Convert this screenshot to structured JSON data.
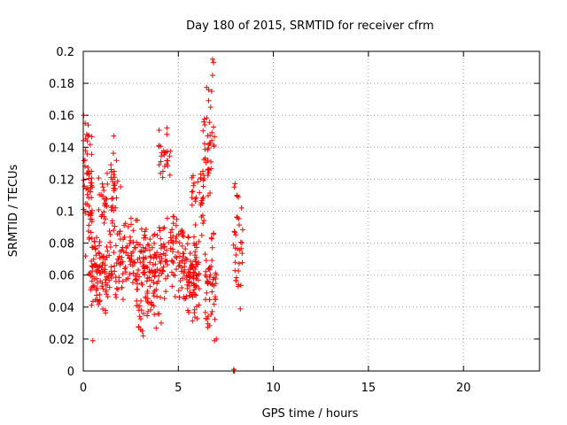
{
  "chart_data": {
    "type": "scatter",
    "title": "Day 180 of 2015, SRMTID for receiver cfrm",
    "xlabel": "GPS time / hours",
    "ylabel": "SRMTID / TECUs",
    "xlim": [
      0,
      24
    ],
    "ylim": [
      0,
      0.2
    ],
    "xticks": [
      0,
      5,
      10,
      15,
      20
    ],
    "yticks": [
      0,
      0.02,
      0.04,
      0.06,
      0.08,
      0.1,
      0.12,
      0.14,
      0.16,
      0.18,
      0.2
    ],
    "grid": true,
    "marker": "+",
    "series_color": "#ff0000",
    "clusters": [
      {
        "x": [
          0.0,
          0.5
        ],
        "y": [
          0.07,
          0.16
        ],
        "n": 60
      },
      {
        "x": [
          0.3,
          1.5
        ],
        "y": [
          0.035,
          0.09
        ],
        "n": 110
      },
      {
        "x": [
          0.7,
          1.3
        ],
        "y": [
          0.09,
          0.125
        ],
        "n": 25
      },
      {
        "x": [
          1.4,
          2.0
        ],
        "y": [
          0.09,
          0.15
        ],
        "n": 30
      },
      {
        "x": [
          1.5,
          2.8
        ],
        "y": [
          0.04,
          0.1
        ],
        "n": 80
      },
      {
        "x": [
          2.8,
          4.0
        ],
        "y": [
          0.02,
          0.1
        ],
        "n": 120
      },
      {
        "x": [
          3.9,
          4.6
        ],
        "y": [
          0.11,
          0.155
        ],
        "n": 25
      },
      {
        "x": [
          4.0,
          5.3
        ],
        "y": [
          0.04,
          0.1
        ],
        "n": 90
      },
      {
        "x": [
          5.3,
          6.1
        ],
        "y": [
          0.03,
          0.09
        ],
        "n": 90
      },
      {
        "x": [
          5.7,
          6.4
        ],
        "y": [
          0.08,
          0.135
        ],
        "n": 30
      },
      {
        "x": [
          6.3,
          6.9
        ],
        "y": [
          0.1,
          0.18
        ],
        "n": 40
      },
      {
        "x": [
          6.4,
          7.0
        ],
        "y": [
          0.02,
          0.09
        ],
        "n": 50
      },
      {
        "x": [
          7.9,
          8.4
        ],
        "y": [
          0.035,
          0.13
        ],
        "n": 35
      }
    ],
    "points": [
      {
        "x": 6.8,
        "y": 0.195
      },
      {
        "x": 6.85,
        "y": 0.193
      },
      {
        "x": 6.8,
        "y": 0.185
      },
      {
        "x": 0.02,
        "y": 0.16
      },
      {
        "x": 0.1,
        "y": 0.155
      },
      {
        "x": 1.6,
        "y": 0.147
      },
      {
        "x": 4.4,
        "y": 0.152
      },
      {
        "x": 6.7,
        "y": 0.165
      },
      {
        "x": 6.75,
        "y": 0.175
      },
      {
        "x": 6.9,
        "y": 0.019
      },
      {
        "x": 7.0,
        "y": 0.02
      },
      {
        "x": 3.1,
        "y": 0.025
      },
      {
        "x": 3.15,
        "y": 0.022
      },
      {
        "x": 0.5,
        "y": 0.019
      },
      {
        "x": 4.1,
        "y": 0.03
      },
      {
        "x": 7.9,
        "y": 0.0
      },
      {
        "x": 7.92,
        "y": 0.001
      },
      {
        "x": 7.95,
        "y": 0.0
      }
    ]
  }
}
